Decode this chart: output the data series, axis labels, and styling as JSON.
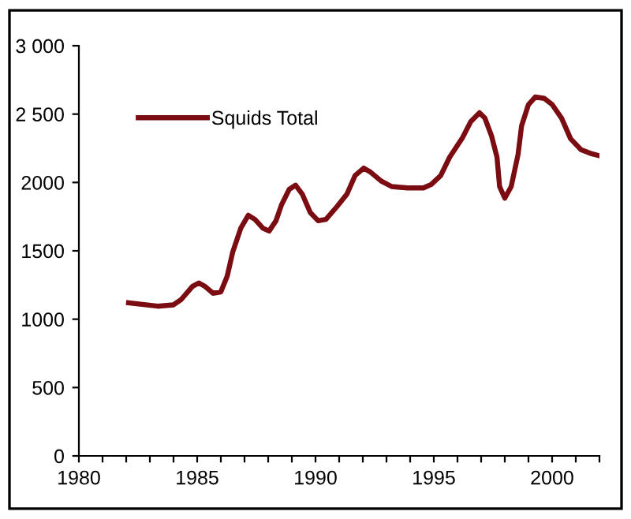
{
  "chart_data": {
    "type": "line",
    "legend": "top left",
    "grid": false,
    "marker": "none",
    "line_style": "solid",
    "xlim": [
      1980,
      2002
    ],
    "ylim": [
      0,
      3000
    ],
    "xticks": [
      1980,
      {
        "value": 1981,
        "label": null
      },
      {
        "value": 1982,
        "label": null
      },
      {
        "value": 1983,
        "label": null
      },
      {
        "value": 1984,
        "label": null
      },
      1985,
      {
        "value": 1986,
        "label": null
      },
      {
        "value": 1987,
        "label": null
      },
      {
        "value": 1988,
        "label": null
      },
      {
        "value": 1989,
        "label": null
      },
      1990,
      {
        "value": 1991,
        "label": null
      },
      {
        "value": 1992,
        "label": null
      },
      {
        "value": 1993,
        "label": null
      },
      {
        "value": 1994,
        "label": null
      },
      1995,
      {
        "value": 1996,
        "label": null
      },
      {
        "value": 1997,
        "label": null
      },
      {
        "value": 1998,
        "label": null
      },
      {
        "value": 1999,
        "label": null
      },
      2000,
      {
        "value": 2001,
        "label": null
      },
      {
        "value": 2002,
        "label": null
      }
    ],
    "yticks": [
      0,
      500,
      1000,
      1500,
      2000,
      {
        "value": 2500,
        "label": "2 500"
      },
      {
        "value": 3000,
        "label": "3 000"
      }
    ],
    "series": [
      {
        "name": "Squids Total",
        "color": "#7b0c12",
        "x": [
          1982.1,
          1983.33,
          1984.0,
          1984.33,
          1984.8,
          1985.07,
          1985.33,
          1985.67,
          1986.0,
          1986.27,
          1986.5,
          1986.84,
          1987.16,
          1987.44,
          1987.78,
          1988.04,
          1988.33,
          1988.56,
          1988.89,
          1989.16,
          1989.44,
          1989.78,
          1990.11,
          1990.44,
          1990.89,
          1991.33,
          1991.67,
          1992.04,
          1992.33,
          1992.78,
          1993.22,
          1993.89,
          1994.56,
          1994.89,
          1995.29,
          1995.67,
          1996.22,
          1996.56,
          1996.93,
          1997.16,
          1997.44,
          1997.67,
          1997.78,
          1998.0,
          1998.27,
          1998.56,
          1998.71,
          1999.0,
          1999.29,
          1999.67,
          2000.0,
          2000.4,
          2000.78,
          2001.22,
          2001.67,
          2002.0
        ],
        "values": [
          1120,
          1095,
          1105,
          1145,
          1240,
          1265,
          1240,
          1190,
          1200,
          1315,
          1490,
          1665,
          1760,
          1730,
          1665,
          1645,
          1720,
          1835,
          1950,
          1980,
          1915,
          1780,
          1720,
          1730,
          1820,
          1915,
          2050,
          2105,
          2075,
          2010,
          1970,
          1960,
          1960,
          1985,
          2050,
          2185,
          2330,
          2445,
          2510,
          2470,
          2340,
          2185,
          1970,
          1885,
          1970,
          2205,
          2415,
          2570,
          2625,
          2615,
          2570,
          2470,
          2320,
          2240,
          2210,
          2195
        ]
      }
    ]
  }
}
